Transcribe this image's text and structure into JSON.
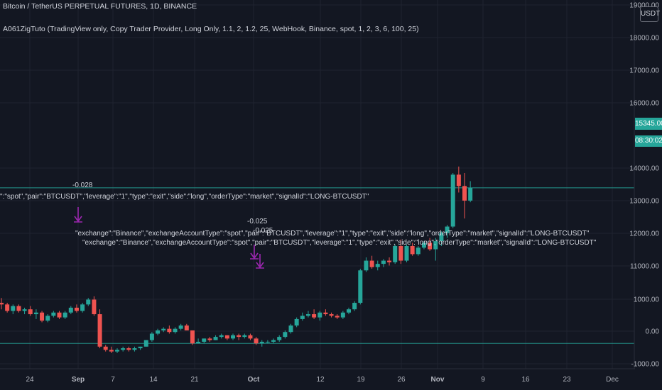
{
  "header": {
    "title": "Bitcoin / TetherUS PERPETUAL FUTURES, 1D, BINANCE",
    "indicator": "A061ZigTuto (TradingView only, Copy Trader Provider, Long Only, 1.1, 2, 1.2, 25, WebHook, Binance, spot, 1, 2, 3, 6, 100, 25)"
  },
  "price_axis": {
    "currency_label": "USDT",
    "current_price": "15345.00",
    "countdown": "08:30:02"
  },
  "signals": {
    "text_1": "\":\"spot\",\"pair\":\"BTCUSDT\",\"leverage\":\"1\",\"type\":\"exit\",\"side\":\"long\",\"orderType\":\"market\",\"signalId\":\"LONG-BTCUSDT\"",
    "text_2": "\"exchange\":\"Binance\",\"exchangeAccountType\":\"spot\",\"pair\":\"BTCUSDT\",\"leverage\":\"1\",\"type\":\"exit\",\"side\":\"long\",\"orderType\":\"market\",\"signalId\":\"LONG-BTCUSDT\"",
    "text_3": "\"exchange\":\"Binance\",\"exchangeAccountType\":\"spot\",\"pair\":\"BTCUSDT\",\"leverage\":\"1\",\"type\":\"exit\",\"side\":\"long\",\"orderType\":\"market\",\"signalId\":\"LONG-BTCUSDT\"",
    "label_1": "-0.028",
    "label_2": "-0.025",
    "label_3": "-0.025"
  },
  "colors": {
    "up": "#26a69a",
    "down": "#ef5350",
    "signal": "#9c27b0",
    "grid": "#1f2330"
  },
  "chart_data": {
    "type": "candlestick",
    "title": "Bitcoin / TetherUS PERPETUAL FUTURES, 1D, BINANCE",
    "y_tick_labels": [
      "19000.00",
      "18000.00",
      "17000.00",
      "16000.00",
      "15345.00",
      "14000.00",
      "13000.00",
      "12000.00",
      "11000.00",
      "1000.00",
      "0.00",
      "-1000.00"
    ],
    "x_tick_labels": [
      "24",
      "Sep",
      "7",
      "14",
      "21",
      "Oct",
      "12",
      "19",
      "26",
      "Nov",
      "9",
      "16",
      "23",
      "Dec"
    ],
    "horizontal_lines": [
      15345,
      10550
    ],
    "candles": [
      [
        11800,
        11950,
        11600,
        11750
      ],
      [
        11750,
        11800,
        11500,
        11550
      ],
      [
        11550,
        11750,
        11450,
        11700
      ],
      [
        11700,
        11750,
        11500,
        11550
      ],
      [
        11550,
        11650,
        11450,
        11600
      ],
      [
        11600,
        11700,
        11400,
        11450
      ],
      [
        11450,
        11600,
        11300,
        11500
      ],
      [
        11500,
        11550,
        11200,
        11250
      ],
      [
        11250,
        11450,
        11200,
        11400
      ],
      [
        11400,
        11550,
        11350,
        11500
      ],
      [
        11500,
        11550,
        11300,
        11350
      ],
      [
        11350,
        11550,
        11300,
        11500
      ],
      [
        11500,
        11700,
        11450,
        11650
      ],
      [
        11650,
        11750,
        11500,
        11550
      ],
      [
        11550,
        11800,
        11500,
        11750
      ],
      [
        11750,
        11950,
        11700,
        11900
      ],
      [
        11900,
        12000,
        11400,
        11450
      ],
      [
        11450,
        11600,
        10400,
        10450
      ],
      [
        10450,
        10500,
        10300,
        10350
      ],
      [
        10350,
        10450,
        10250,
        10300
      ],
      [
        10300,
        10400,
        10250,
        10350
      ],
      [
        10350,
        10450,
        10300,
        10400
      ],
      [
        10400,
        10450,
        10300,
        10350
      ],
      [
        10350,
        10450,
        10300,
        10400
      ],
      [
        10400,
        10450,
        10350,
        10450
      ],
      [
        10450,
        10650,
        10450,
        10650
      ],
      [
        10650,
        10900,
        10600,
        10850
      ],
      [
        10850,
        11000,
        10800,
        10950
      ],
      [
        10950,
        11050,
        10900,
        11000
      ],
      [
        11000,
        11100,
        10850,
        10900
      ],
      [
        10900,
        11050,
        10850,
        11000
      ],
      [
        11000,
        11150,
        10950,
        11100
      ],
      [
        11100,
        11150,
        10950,
        10950
      ],
      [
        10950,
        10950,
        10500,
        10550
      ],
      [
        10550,
        10700,
        10550,
        10600
      ],
      [
        10600,
        10700,
        10550,
        10700
      ],
      [
        10700,
        10750,
        10600,
        10650
      ],
      [
        10650,
        10800,
        10650,
        10750
      ],
      [
        10750,
        10850,
        10700,
        10800
      ],
      [
        10800,
        10800,
        10650,
        10700
      ],
      [
        10700,
        10850,
        10650,
        10800
      ],
      [
        10800,
        10850,
        10650,
        10750
      ],
      [
        10750,
        10850,
        10700,
        10800
      ],
      [
        10800,
        10850,
        10650,
        10700
      ],
      [
        10700,
        10750,
        10500,
        10550
      ],
      [
        10550,
        10650,
        10450,
        10600
      ],
      [
        10600,
        10650,
        10550,
        10600
      ],
      [
        10600,
        10700,
        10550,
        10650
      ],
      [
        10650,
        10800,
        10600,
        10750
      ],
      [
        10750,
        10950,
        10700,
        10900
      ],
      [
        10900,
        11150,
        10850,
        11100
      ],
      [
        11100,
        11350,
        11050,
        11300
      ],
      [
        11300,
        11500,
        11250,
        11400
      ],
      [
        11400,
        11550,
        11350,
        11450
      ],
      [
        11450,
        11600,
        11300,
        11350
      ],
      [
        11350,
        11550,
        11250,
        11500
      ],
      [
        11500,
        11600,
        11400,
        11450
      ],
      [
        11450,
        11500,
        11350,
        11400
      ],
      [
        11400,
        11450,
        11300,
        11350
      ],
      [
        11350,
        11550,
        11300,
        11500
      ],
      [
        11500,
        11650,
        11450,
        11600
      ],
      [
        11600,
        11850,
        11550,
        11800
      ],
      [
        11800,
        12850,
        11750,
        12800
      ],
      [
        12800,
        13200,
        12750,
        13100
      ],
      [
        13100,
        13250,
        12850,
        12900
      ],
      [
        12900,
        13100,
        12800,
        13000
      ],
      [
        13000,
        13150,
        12900,
        13100
      ],
      [
        13100,
        13200,
        12950,
        13050
      ],
      [
        13050,
        13600,
        13000,
        13550
      ],
      [
        13550,
        13750,
        13000,
        13100
      ],
      [
        13100,
        13600,
        13050,
        13550
      ],
      [
        13550,
        13650,
        13250,
        13300
      ],
      [
        13300,
        13550,
        13250,
        13500
      ],
      [
        13500,
        13700,
        13450,
        13650
      ],
      [
        13650,
        13800,
        13400,
        13450
      ],
      [
        13450,
        13800,
        13100,
        13700
      ],
      [
        13700,
        14000,
        13550,
        13950
      ],
      [
        13950,
        14200,
        13800,
        14150
      ],
      [
        14150,
        15800,
        14100,
        15750
      ],
      [
        15750,
        16000,
        15200,
        15400
      ],
      [
        15400,
        15800,
        14400,
        14950
      ],
      [
        14950,
        15550,
        14900,
        15345
      ]
    ]
  }
}
